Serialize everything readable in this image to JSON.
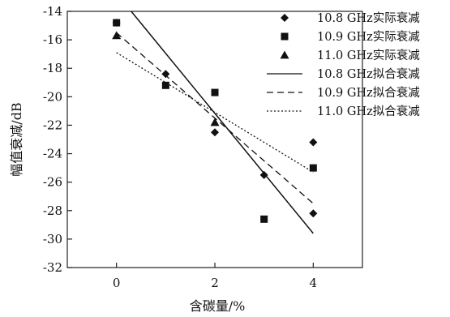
{
  "chart_data": {
    "type": "scatter",
    "xlabel": "含碳量/%",
    "ylabel": "幅值衰减/dB",
    "xlim": [
      -1,
      5
    ],
    "ylim": [
      -32,
      -14
    ],
    "xticks": [
      0,
      2,
      4
    ],
    "yticks": [
      -14,
      -16,
      -18,
      -20,
      -22,
      -24,
      -26,
      -28,
      -30,
      -32
    ],
    "xtick_labels": [
      "0",
      "2",
      "4"
    ],
    "ytick_labels": [
      "-14",
      "-16",
      "-18",
      "-20",
      "-22",
      "-24",
      "-26",
      "-28",
      "-30",
      "-32"
    ],
    "grid": false,
    "legend_position": "top-right",
    "series": [
      {
        "name": "10.8 GHz实际衰减",
        "kind": "scatter",
        "marker": "diamond",
        "x": [
          0,
          1,
          2,
          3,
          4,
          4
        ],
        "y": [
          -14.8,
          -18.4,
          -22.5,
          -25.5,
          -28.2,
          -23.2
        ]
      },
      {
        "name": "10.9 GHz实际衰减",
        "kind": "scatter",
        "marker": "square",
        "x": [
          0,
          1,
          2,
          3,
          4
        ],
        "y": [
          -14.8,
          -19.2,
          -19.7,
          -28.6,
          -25.0
        ]
      },
      {
        "name": "11.0 GHz实际衰减",
        "kind": "scatter",
        "marker": "triangle",
        "x": [
          0,
          2
        ],
        "y": [
          -15.7,
          -21.8
        ]
      },
      {
        "name": "10.8 GHz拟合衰减",
        "kind": "line",
        "dash": "solid",
        "x": [
          0.3,
          4.0
        ],
        "y": [
          -14.0,
          -29.6
        ]
      },
      {
        "name": "10.9 GHz拟合衰减",
        "kind": "line",
        "dash": "dashed",
        "x": [
          0,
          4.0
        ],
        "y": [
          -15.5,
          -27.5
        ]
      },
      {
        "name": "11.0 GHz拟合衰减",
        "kind": "line",
        "dash": "dotted",
        "x": [
          0,
          4.0
        ],
        "y": [
          -16.9,
          -25.3
        ]
      }
    ]
  }
}
